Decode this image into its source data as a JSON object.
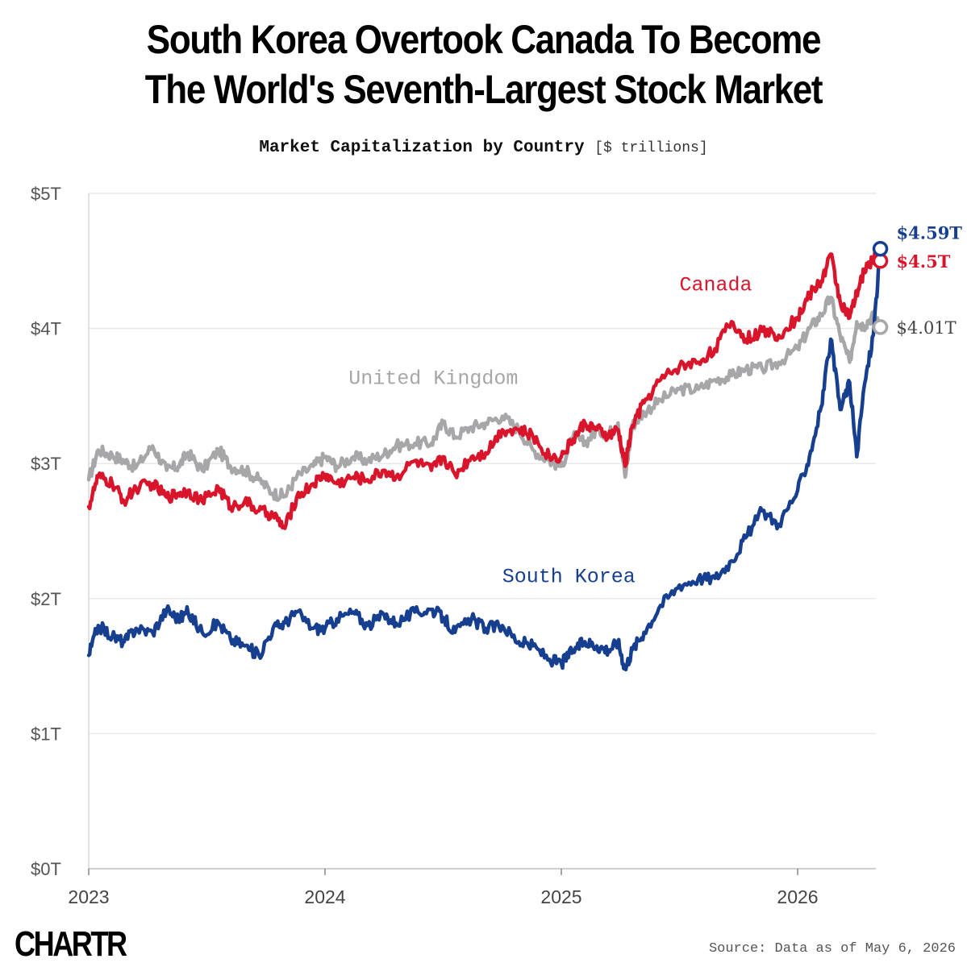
{
  "title_line1": "South Korea Overtook Canada To Become",
  "title_line2": "The World's Seventh-Largest Stock Market",
  "subtitle": "Market Capitalization by Country",
  "subtitle_unit": "[$ trillions]",
  "logo": "CHARTR",
  "source": "Source: Data as of May 6, 2026",
  "chart_data": {
    "type": "line",
    "y_ticks": [
      "$5T",
      "$4T",
      "$3T",
      "$2T",
      "$1T",
      "$0T"
    ],
    "y_tick_values": [
      5,
      4,
      3,
      2,
      1,
      0
    ],
    "x_ticks": [
      "2023",
      "2024",
      "2025",
      "2026"
    ],
    "x_tick_values": [
      2023,
      2024,
      2025,
      2026
    ],
    "ylim": [
      0,
      5
    ],
    "xlim": [
      2023,
      2026.37
    ],
    "grid": true,
    "series": [
      {
        "name": "United Kingdom",
        "color": "#a7a7a9",
        "end_label": "$4.01T",
        "x": [
          2023.0,
          2023.04,
          2023.1,
          2023.15,
          2023.2,
          2023.27,
          2023.33,
          2023.38,
          2023.42,
          2023.48,
          2023.55,
          2023.6,
          2023.66,
          2023.72,
          2023.78,
          2023.83,
          2023.88,
          2023.95,
          2024.0,
          2024.05,
          2024.12,
          2024.18,
          2024.25,
          2024.3,
          2024.38,
          2024.45,
          2024.5,
          2024.55,
          2024.62,
          2024.68,
          2024.75,
          2024.82,
          2024.88,
          2024.95,
          2025.0,
          2025.05,
          2025.1,
          2025.15,
          2025.2,
          2025.24,
          2025.27,
          2025.3,
          2025.35,
          2025.42,
          2025.5,
          2025.58,
          2025.65,
          2025.72,
          2025.78,
          2025.85,
          2025.92,
          2026.0,
          2026.05,
          2026.1,
          2026.14,
          2026.18,
          2026.22,
          2026.25,
          2026.28,
          2026.32,
          2026.35
        ],
        "y": [
          2.88,
          3.1,
          3.06,
          3.02,
          2.97,
          3.13,
          2.95,
          2.98,
          3.08,
          2.95,
          3.1,
          2.98,
          2.95,
          2.88,
          2.78,
          2.76,
          2.9,
          2.98,
          3.05,
          2.98,
          3.05,
          3.02,
          3.07,
          3.13,
          3.15,
          3.15,
          3.3,
          3.2,
          3.27,
          3.3,
          3.35,
          3.25,
          3.1,
          3.02,
          2.98,
          3.2,
          3.15,
          3.25,
          3.22,
          3.3,
          2.9,
          3.28,
          3.38,
          3.47,
          3.55,
          3.55,
          3.62,
          3.65,
          3.7,
          3.7,
          3.75,
          3.85,
          4.0,
          4.1,
          4.23,
          3.95,
          3.75,
          4.05,
          4.02,
          4.1,
          4.01
        ]
      },
      {
        "name": "Canada",
        "color": "#d9152c",
        "end_label": "$4.5T",
        "x": [
          2023.0,
          2023.04,
          2023.1,
          2023.15,
          2023.2,
          2023.27,
          2023.33,
          2023.38,
          2023.42,
          2023.48,
          2023.55,
          2023.6,
          2023.66,
          2023.72,
          2023.78,
          2023.83,
          2023.88,
          2023.95,
          2024.0,
          2024.05,
          2024.12,
          2024.18,
          2024.25,
          2024.3,
          2024.38,
          2024.45,
          2024.5,
          2024.55,
          2024.62,
          2024.68,
          2024.75,
          2024.82,
          2024.88,
          2024.95,
          2025.0,
          2025.05,
          2025.1,
          2025.15,
          2025.2,
          2025.24,
          2025.27,
          2025.3,
          2025.35,
          2025.42,
          2025.5,
          2025.58,
          2025.65,
          2025.72,
          2025.78,
          2025.85,
          2025.92,
          2026.0,
          2026.05,
          2026.1,
          2026.14,
          2026.18,
          2026.22,
          2026.25,
          2026.28,
          2026.32,
          2026.35
        ],
        "y": [
          2.68,
          2.9,
          2.85,
          2.72,
          2.82,
          2.85,
          2.75,
          2.78,
          2.8,
          2.72,
          2.82,
          2.68,
          2.72,
          2.65,
          2.62,
          2.52,
          2.75,
          2.85,
          2.92,
          2.85,
          2.9,
          2.88,
          2.95,
          2.9,
          3.02,
          2.95,
          3.05,
          2.92,
          3.05,
          3.08,
          3.25,
          3.25,
          3.2,
          3.05,
          3.05,
          3.18,
          3.3,
          3.25,
          3.2,
          3.25,
          2.98,
          3.28,
          3.45,
          3.62,
          3.72,
          3.75,
          3.85,
          4.05,
          3.92,
          3.98,
          3.95,
          4.08,
          4.25,
          4.35,
          4.55,
          4.2,
          4.08,
          4.25,
          4.42,
          4.52,
          4.5
        ]
      },
      {
        "name": "South Korea",
        "color": "#173f8f",
        "end_label": "$4.59T",
        "x": [
          2023.0,
          2023.04,
          2023.1,
          2023.15,
          2023.2,
          2023.27,
          2023.33,
          2023.38,
          2023.42,
          2023.48,
          2023.55,
          2023.6,
          2023.66,
          2023.72,
          2023.78,
          2023.83,
          2023.88,
          2023.95,
          2024.0,
          2024.05,
          2024.12,
          2024.18,
          2024.25,
          2024.3,
          2024.38,
          2024.45,
          2024.5,
          2024.55,
          2024.62,
          2024.68,
          2024.75,
          2024.82,
          2024.88,
          2024.95,
          2025.0,
          2025.05,
          2025.1,
          2025.15,
          2025.2,
          2025.24,
          2025.27,
          2025.3,
          2025.35,
          2025.42,
          2025.5,
          2025.58,
          2025.65,
          2025.72,
          2025.78,
          2025.85,
          2025.92,
          2026.0,
          2026.05,
          2026.1,
          2026.14,
          2026.18,
          2026.22,
          2026.25,
          2026.28,
          2026.32,
          2026.35
        ],
        "y": [
          1.58,
          1.8,
          1.72,
          1.68,
          1.78,
          1.75,
          1.92,
          1.85,
          1.9,
          1.75,
          1.82,
          1.7,
          1.65,
          1.58,
          1.78,
          1.82,
          1.9,
          1.78,
          1.78,
          1.85,
          1.9,
          1.8,
          1.88,
          1.82,
          1.9,
          1.92,
          1.86,
          1.75,
          1.85,
          1.78,
          1.8,
          1.68,
          1.65,
          1.55,
          1.52,
          1.62,
          1.68,
          1.65,
          1.62,
          1.68,
          1.48,
          1.62,
          1.75,
          1.95,
          2.1,
          2.15,
          2.15,
          2.28,
          2.45,
          2.65,
          2.55,
          2.8,
          3.05,
          3.42,
          3.92,
          3.4,
          3.6,
          3.05,
          3.55,
          3.95,
          4.59
        ]
      }
    ],
    "annotations": [
      "United Kingdom",
      "Canada",
      "South Korea"
    ]
  }
}
